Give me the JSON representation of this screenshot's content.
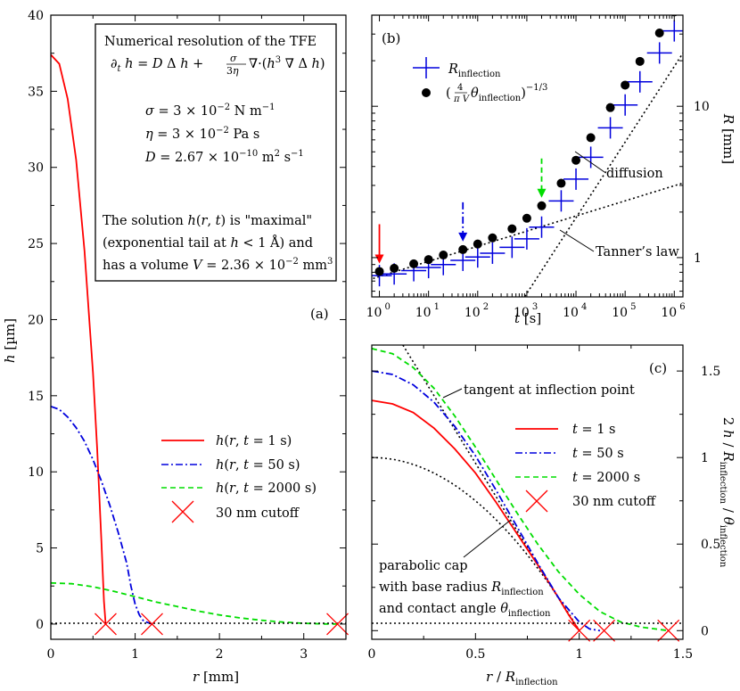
{
  "chart_data": [
    {
      "type": "line",
      "panel_label": "(a)",
      "xlabel": "r [mm]",
      "ylabel": "h [µm]",
      "xlim": [
        0,
        3.5
      ],
      "ylim": [
        -1,
        40
      ],
      "xticks": [
        0,
        1,
        2,
        3
      ],
      "yticks": [
        0,
        5,
        10,
        15,
        20,
        25,
        30,
        35,
        40
      ],
      "info_box": [
        "Numerical resolution of the TFE",
        "∂t h = D Δ h + σ/3η ∇·(h³ ∇ Δ h)",
        "σ = 3 × 10⁻² N m⁻¹",
        "η = 3 × 10⁻² Pa s",
        "D = 2.67 × 10⁻¹⁰ m² s⁻¹",
        "The solution h(r, t) is \"maximal\"",
        "(exponential tail at h < 1 Å) and",
        "has a volume V = 2.36 × 10⁻² mm³"
      ],
      "series": [
        {
          "name": "h(r, t = 1 s)",
          "color": "#ff0000",
          "dash": "solid",
          "x": [
            0,
            0.1,
            0.2,
            0.3,
            0.4,
            0.5,
            0.55,
            0.6,
            0.63,
            0.65
          ],
          "y": [
            37.4,
            36.8,
            34.5,
            30.5,
            24.5,
            16.5,
            11.5,
            5.5,
            1.5,
            0
          ]
        },
        {
          "name": "h(r, t = 50 s)",
          "color": "#0000dd",
          "dash": "dashdot",
          "x": [
            0,
            0.1,
            0.2,
            0.3,
            0.4,
            0.5,
            0.6,
            0.7,
            0.8,
            0.9,
            0.95,
            1.0,
            1.05,
            1.1,
            1.2
          ],
          "y": [
            14.3,
            14.1,
            13.6,
            12.9,
            12.0,
            10.8,
            9.4,
            7.8,
            6.0,
            4.0,
            2.5,
            1.3,
            0.6,
            0.2,
            0
          ]
        },
        {
          "name": "h(r, t = 2000 s)",
          "color": "#00dd00",
          "dash": "dashed",
          "x": [
            0,
            0.25,
            0.5,
            0.75,
            1.0,
            1.25,
            1.5,
            1.75,
            2.0,
            2.25,
            2.5,
            2.75,
            3.0,
            3.25,
            3.4
          ],
          "y": [
            2.7,
            2.65,
            2.45,
            2.15,
            1.8,
            1.45,
            1.15,
            0.85,
            0.6,
            0.4,
            0.25,
            0.13,
            0.05,
            0.01,
            0
          ]
        },
        {
          "name": "30 nm cutoff",
          "color": "#ff0000",
          "marker": "x",
          "x": [
            0.65,
            1.2,
            3.4
          ],
          "y": [
            0,
            0,
            0
          ]
        }
      ],
      "legend": "right-middle"
    },
    {
      "type": "scatter",
      "panel_label": "(b)",
      "xlabel": "t [s]",
      "ylabel": "R [mm]",
      "xscale": "log",
      "yscale": "log",
      "xlim": [
        0.7,
        1500000
      ],
      "ylim": [
        0.55,
        40
      ],
      "xticks": [
        "10⁰",
        "10¹",
        "10²",
        "10³",
        "10⁴",
        "10⁵",
        "10⁶"
      ],
      "yticks": [
        "1",
        "10"
      ],
      "series": [
        {
          "name": "R_inflection",
          "color": "#0000dd",
          "marker": "+",
          "x": [
            1,
            2,
            5,
            10,
            20,
            50,
            100,
            200,
            500,
            1000,
            2000,
            5000,
            10000,
            20000,
            50000,
            100000,
            200000,
            500000,
            1000000
          ],
          "y": [
            0.76,
            0.78,
            0.82,
            0.86,
            0.9,
            0.96,
            1.01,
            1.07,
            1.17,
            1.33,
            1.59,
            2.37,
            3.3,
            4.6,
            7.2,
            10.2,
            14.5,
            22.5,
            31.5
          ]
        },
        {
          "name": "(4/πV θ_inflection)^(-1/3)",
          "color": "#000000",
          "marker": "circle",
          "x": [
            1,
            2,
            5,
            10,
            20,
            50,
            100,
            200,
            500,
            1000,
            2000,
            5000,
            10000,
            20000,
            50000,
            100000,
            200000,
            500000,
            1000000
          ],
          "y": [
            0.81,
            0.85,
            0.91,
            0.97,
            1.04,
            1.13,
            1.23,
            1.35,
            1.55,
            1.82,
            2.2,
            3.1,
            4.4,
            6.2,
            9.8,
            13.8,
            19.8,
            30.5,
            42
          ]
        }
      ],
      "fit_lines": [
        {
          "name": "diffusion",
          "x": [
            1000,
            1000000
          ],
          "y": [
            0.58,
            30
          ],
          "slope": 0.5
        },
        {
          "name": "Tanner's law",
          "x": [
            1,
            1000000
          ],
          "y": [
            0.75,
            3.0
          ],
          "slope": 0.1
        }
      ],
      "arrows": [
        {
          "x": 1,
          "color": "#ff0000",
          "dash": "solid"
        },
        {
          "x": 50,
          "color": "#0000dd",
          "dash": "dashdot"
        },
        {
          "x": 2000,
          "color": "#00dd00",
          "dash": "dashed"
        }
      ],
      "annotations": [
        "diffusion",
        "Tanner's law"
      ],
      "legend": "top-left"
    },
    {
      "type": "line",
      "panel_label": "(c)",
      "xlabel": "r / R_inflection",
      "ylabel": "2 h / R_inflection / θ_inflection",
      "xlim": [
        0,
        1.5
      ],
      "ylim": [
        -0.05,
        1.65
      ],
      "xticks": [
        0,
        0.5,
        1,
        1.5
      ],
      "yticks": [
        0,
        0.5,
        1,
        1.5
      ],
      "series": [
        {
          "name": "t = 1 s",
          "color": "#ff0000",
          "dash": "solid",
          "x": [
            0,
            0.1,
            0.2,
            0.3,
            0.4,
            0.5,
            0.6,
            0.7,
            0.8,
            0.9,
            0.95,
            1.0
          ],
          "y": [
            1.33,
            1.31,
            1.26,
            1.17,
            1.05,
            0.91,
            0.74,
            0.56,
            0.38,
            0.19,
            0.09,
            0.0
          ]
        },
        {
          "name": "t = 50 s",
          "color": "#0000dd",
          "dash": "dashdot",
          "x": [
            0,
            0.1,
            0.2,
            0.3,
            0.4,
            0.5,
            0.6,
            0.7,
            0.8,
            0.9,
            1.0,
            1.05,
            1.1
          ],
          "y": [
            1.5,
            1.48,
            1.42,
            1.32,
            1.18,
            1.01,
            0.81,
            0.6,
            0.39,
            0.19,
            0.05,
            0.01,
            0
          ]
        },
        {
          "name": "t = 2000 s",
          "color": "#00dd00",
          "dash": "dashed",
          "x": [
            0,
            0.1,
            0.2,
            0.3,
            0.4,
            0.5,
            0.6,
            0.7,
            0.8,
            0.9,
            1.0,
            1.1,
            1.2,
            1.3,
            1.43
          ],
          "y": [
            1.63,
            1.6,
            1.52,
            1.4,
            1.24,
            1.06,
            0.87,
            0.68,
            0.5,
            0.34,
            0.21,
            0.11,
            0.05,
            0.02,
            0
          ]
        },
        {
          "name": "30 nm cutoff",
          "color": "#ff0000",
          "marker": "x",
          "x": [
            1.0,
            1.12,
            1.43
          ],
          "y": [
            0,
            0,
            0
          ]
        }
      ],
      "reference_curves": [
        {
          "name": "parabolic cap",
          "x": [
            0,
            0.2,
            0.4,
            0.6,
            0.8,
            1.0
          ],
          "y": [
            1.0,
            0.96,
            0.84,
            0.64,
            0.36,
            0.0
          ]
        },
        {
          "name": "tangent at inflection point",
          "x": [
            0.15,
            0.95
          ],
          "y": [
            1.65,
            0.09
          ]
        }
      ],
      "annotations": [
        "tangent at inflection point",
        "parabolic cap",
        "with base radius R_inflection",
        "and contact angle θ_inflection"
      ],
      "legend": "right-middle"
    }
  ]
}
